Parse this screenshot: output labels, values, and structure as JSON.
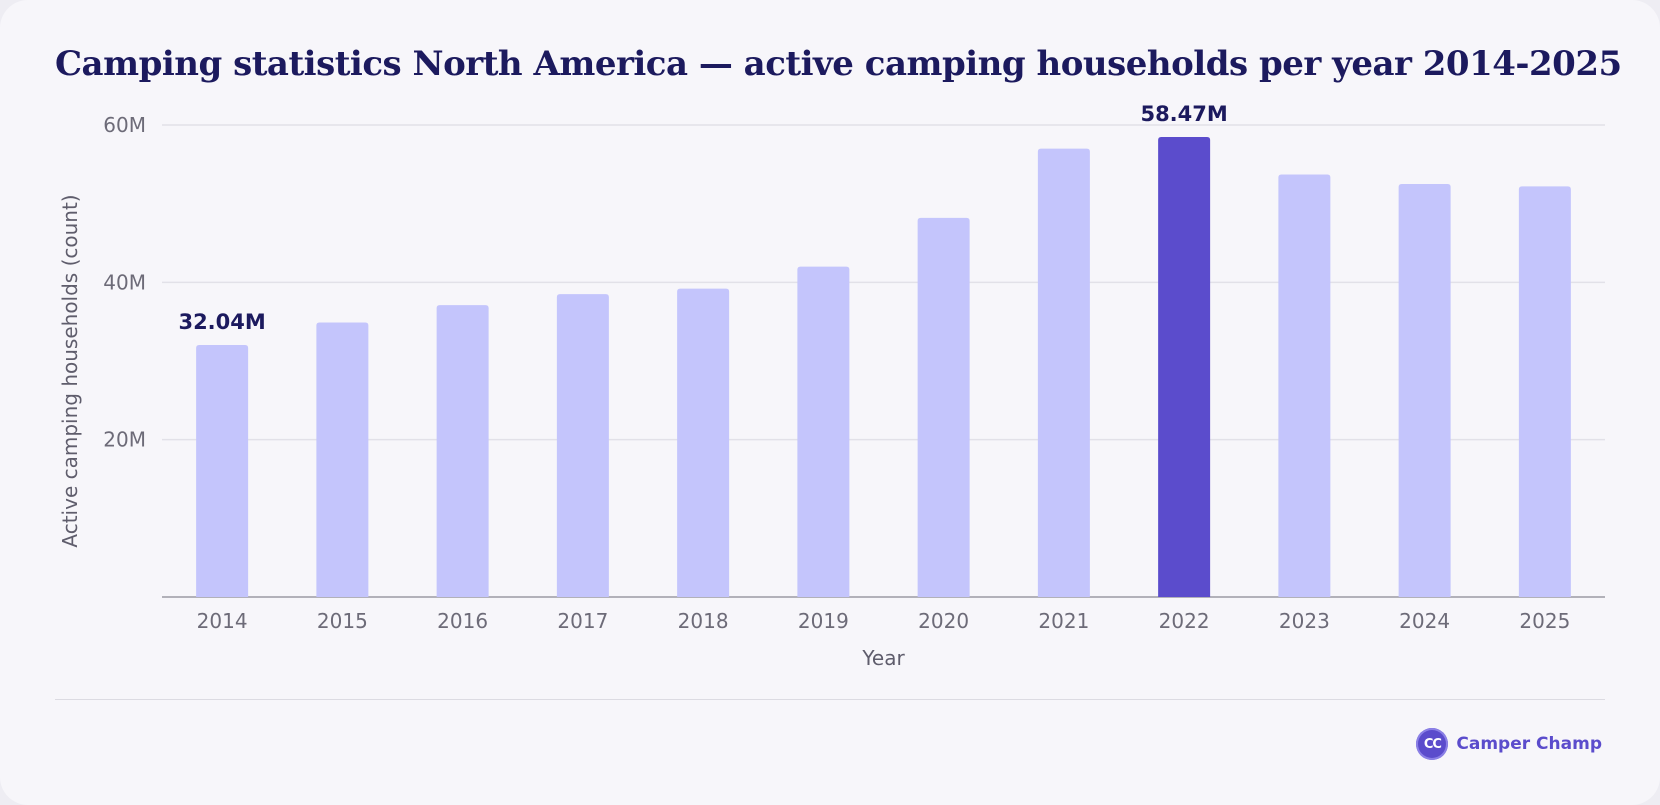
{
  "header": {
    "title": "Camping statistics North America — active camping households per year 2014-2025"
  },
  "chart_data": {
    "type": "bar",
    "title": "Camping statistics North America — active camping households per year 2014-2025",
    "xlabel": "Year",
    "ylabel": "Active camping households (count)",
    "categories": [
      "2014",
      "2015",
      "2016",
      "2017",
      "2018",
      "2019",
      "2020",
      "2021",
      "2022",
      "2023",
      "2024",
      "2025"
    ],
    "values": [
      32.04,
      34.9,
      37.1,
      38.5,
      39.2,
      42.0,
      48.2,
      57.0,
      58.47,
      53.7,
      52.5,
      52.2
    ],
    "value_unit": "M",
    "ylim": [
      0,
      60
    ],
    "yticks": [
      {
        "value": 20,
        "label": "20M"
      },
      {
        "value": 40,
        "label": "40M"
      },
      {
        "value": 60,
        "label": "60M"
      }
    ],
    "data_labels": [
      {
        "category": "2014",
        "text": "32.04M"
      },
      {
        "category": "2022",
        "text": "58.47M"
      }
    ],
    "highlight_category": "2022",
    "grid": true,
    "colors": {
      "bar": "#c4c5fc",
      "highlight": "#5b4ccc",
      "grid": "#e2e1e8",
      "axis": "#9b9aa3"
    }
  },
  "brand": {
    "logo_text": "CC",
    "name": "Camper Champ"
  }
}
